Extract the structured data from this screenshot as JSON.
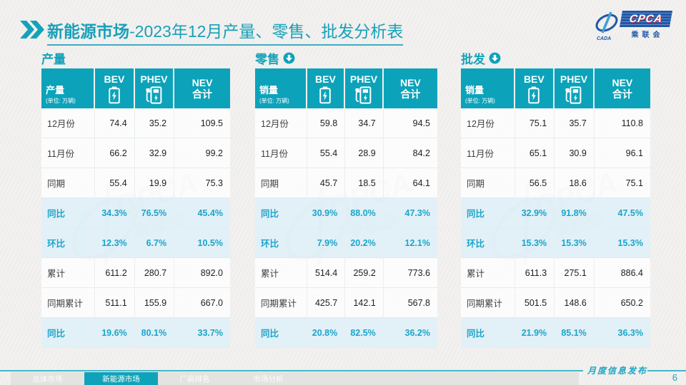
{
  "header": {
    "title_emphasis": "新能源市场",
    "title_rest": "-2023年12月产量、零售、批发分析表"
  },
  "logo": {
    "swoosh_text": "CADA",
    "main_text": "CPCA",
    "sub_text": "乘联会"
  },
  "colors": {
    "primary_teal": "#0ca3ba",
    "highlight_blue": "#1ca4cb",
    "highlight_row_bg": "#dff0f8",
    "logo_blue": "#2057a7"
  },
  "tables": [
    {
      "section_title": "产量",
      "arrow_icon": false,
      "corner_label": "产量",
      "unit": "(单位: 万辆)",
      "col_bev": "BEV",
      "col_phev": "PHEV",
      "col_nev_line1": "NEV",
      "col_nev_line2": "合计",
      "rows": [
        {
          "label": "12月份",
          "values": [
            "74.4",
            "35.2",
            "109.5"
          ],
          "highlight": false
        },
        {
          "label": "11月份",
          "values": [
            "66.2",
            "32.9",
            "99.2"
          ],
          "highlight": false
        },
        {
          "label": "同期",
          "values": [
            "55.4",
            "19.9",
            "75.3"
          ],
          "highlight": false
        },
        {
          "label": "同比",
          "values": [
            "34.3%",
            "76.5%",
            "45.4%"
          ],
          "highlight": true
        },
        {
          "label": "环比",
          "values": [
            "12.3%",
            "6.7%",
            "10.5%"
          ],
          "highlight": true
        },
        {
          "label": "累计",
          "values": [
            "611.2",
            "280.7",
            "892.0"
          ],
          "highlight": false
        },
        {
          "label": "同期累计",
          "values": [
            "511.1",
            "155.9",
            "667.0"
          ],
          "highlight": false
        },
        {
          "label": "同比",
          "values": [
            "19.6%",
            "80.1%",
            "33.7%"
          ],
          "highlight": true
        }
      ]
    },
    {
      "section_title": "零售",
      "arrow_icon": true,
      "corner_label": "销量",
      "unit": "(单位: 万辆)",
      "col_bev": "BEV",
      "col_phev": "PHEV",
      "col_nev_line1": "NEV",
      "col_nev_line2": "合计",
      "rows": [
        {
          "label": "12月份",
          "values": [
            "59.8",
            "34.7",
            "94.5"
          ],
          "highlight": false
        },
        {
          "label": "11月份",
          "values": [
            "55.4",
            "28.9",
            "84.2"
          ],
          "highlight": false
        },
        {
          "label": "同期",
          "values": [
            "45.7",
            "18.5",
            "64.1"
          ],
          "highlight": false
        },
        {
          "label": "同比",
          "values": [
            "30.9%",
            "88.0%",
            "47.3%"
          ],
          "highlight": true
        },
        {
          "label": "环比",
          "values": [
            "7.9%",
            "20.2%",
            "12.1%"
          ],
          "highlight": true
        },
        {
          "label": "累计",
          "values": [
            "514.4",
            "259.2",
            "773.6"
          ],
          "highlight": false
        },
        {
          "label": "同期累计",
          "values": [
            "425.7",
            "142.1",
            "567.8"
          ],
          "highlight": false
        },
        {
          "label": "同比",
          "values": [
            "20.8%",
            "82.5%",
            "36.2%"
          ],
          "highlight": true
        }
      ]
    },
    {
      "section_title": "批发",
      "arrow_icon": true,
      "corner_label": "销量",
      "unit": "(单位: 万辆)",
      "col_bev": "BEV",
      "col_phev": "PHEV",
      "col_nev_line1": "NEV",
      "col_nev_line2": "合计",
      "rows": [
        {
          "label": "12月份",
          "values": [
            "75.1",
            "35.7",
            "110.8"
          ],
          "highlight": false
        },
        {
          "label": "11月份",
          "values": [
            "65.1",
            "30.9",
            "96.1"
          ],
          "highlight": false
        },
        {
          "label": "同期",
          "values": [
            "56.5",
            "18.6",
            "75.1"
          ],
          "highlight": false
        },
        {
          "label": "同比",
          "values": [
            "32.9%",
            "91.8%",
            "47.5%"
          ],
          "highlight": true
        },
        {
          "label": "环比",
          "values": [
            "15.3%",
            "15.3%",
            "15.3%"
          ],
          "highlight": true
        },
        {
          "label": "累计",
          "values": [
            "611.3",
            "275.1",
            "886.4"
          ],
          "highlight": false
        },
        {
          "label": "同期累计",
          "values": [
            "501.5",
            "148.6",
            "650.2"
          ],
          "highlight": false
        },
        {
          "label": "同比",
          "values": [
            "21.9%",
            "85.1%",
            "36.3%"
          ],
          "highlight": true
        }
      ]
    }
  ],
  "footer": {
    "note": "月度信息发布",
    "page_number": "6",
    "nav_items": [
      {
        "label": "总体市场",
        "active": false
      },
      {
        "label": "新能源市场",
        "active": true
      },
      {
        "label": "厂商排名",
        "active": false
      },
      {
        "label": "市场分析",
        "active": false
      }
    ]
  }
}
